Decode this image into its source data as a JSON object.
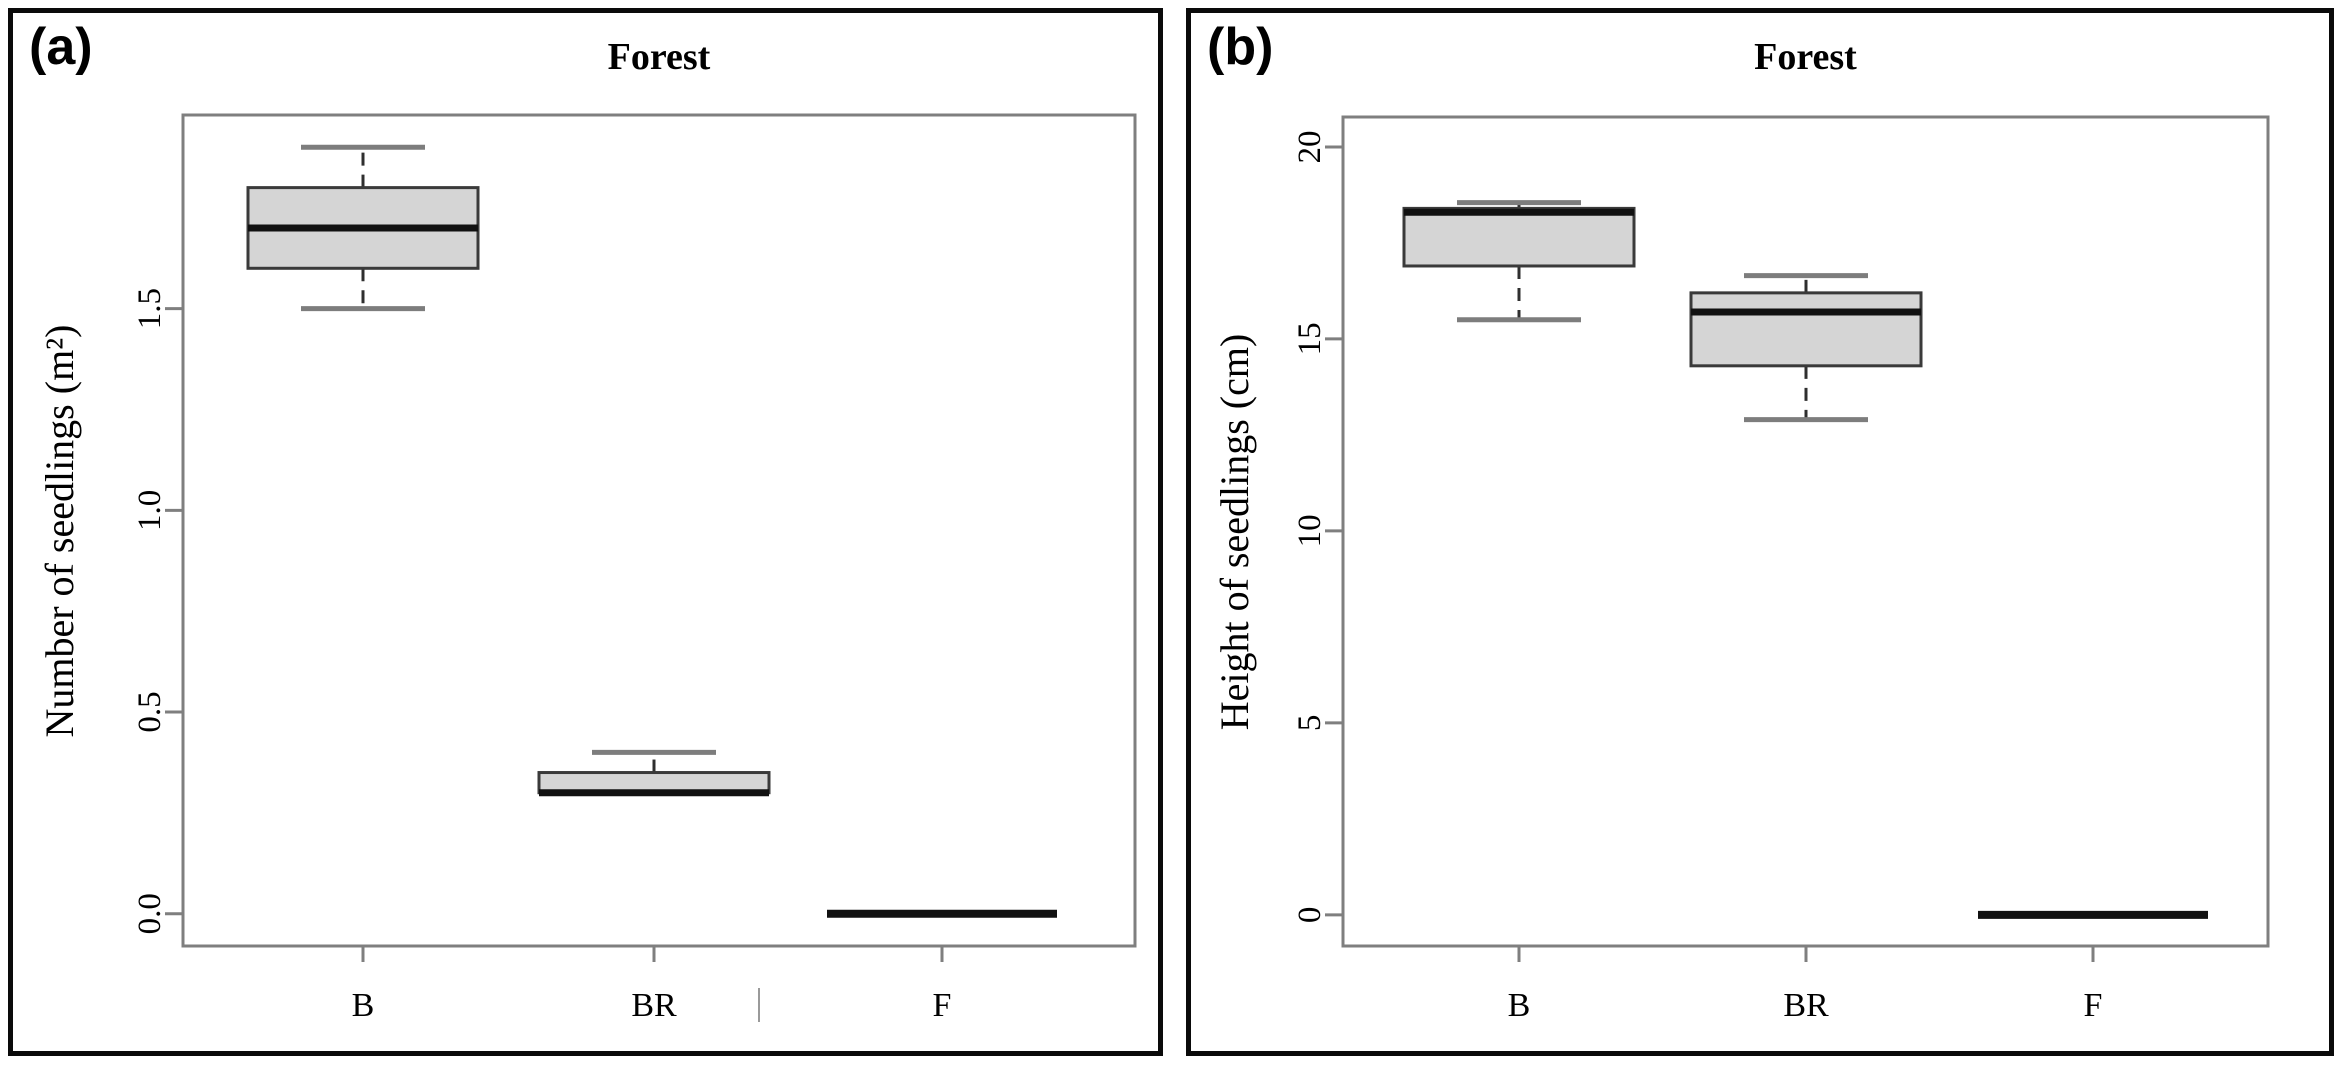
{
  "figure": {
    "colors": {
      "axis": "#7f7f7f",
      "box_fill": "#d5d5d5",
      "box_border": "#3a3a3a",
      "median": "#111111",
      "whisker": "#2f2f2f",
      "whisker_cap": "#7d7d7d",
      "panel_border": "#0a0a0a",
      "text": "#000000"
    }
  },
  "chart_data": [
    {
      "type": "box",
      "panel_label": "(a)",
      "title": "Forest",
      "xlabel": "",
      "ylabel": "Number of seedlings (m²)",
      "categories": [
        "B",
        "BR",
        "F"
      ],
      "yticks": [
        0.0,
        0.5,
        1.0,
        1.5
      ],
      "ytick_labels": [
        "0.0",
        "0.5",
        "1.0",
        "1.5"
      ],
      "ylim": [
        -0.08,
        1.98
      ],
      "grid": false,
      "legend": "none",
      "series": [
        {
          "category": "B",
          "min": 1.5,
          "q1": 1.6,
          "median": 1.7,
          "q3": 1.8,
          "max": 1.9
        },
        {
          "category": "BR",
          "min": 0.3,
          "q1": 0.3,
          "median": 0.3,
          "q3": 0.35,
          "max": 0.4
        },
        {
          "category": "F",
          "min": 0.0,
          "q1": 0.0,
          "median": 0.0,
          "q3": 0.0,
          "max": 0.0
        }
      ]
    },
    {
      "type": "box",
      "panel_label": "(b)",
      "title": "Forest",
      "xlabel": "",
      "ylabel": "Height of seedlings (cm)",
      "categories": [
        "B",
        "BR",
        "F"
      ],
      "yticks": [
        0,
        5,
        10,
        15,
        20
      ],
      "ytick_labels": [
        "0",
        "5",
        "10",
        "15",
        "20"
      ],
      "ylim": [
        -0.81,
        20.78
      ],
      "grid": false,
      "legend": "none",
      "series": [
        {
          "category": "B",
          "min": 15.5,
          "q1": 16.9,
          "median": 18.3,
          "q3": 18.4,
          "max": 18.55
        },
        {
          "category": "BR",
          "min": 12.9,
          "q1": 14.3,
          "median": 15.7,
          "q3": 16.2,
          "max": 16.65
        },
        {
          "category": "F",
          "min": 0.0,
          "q1": 0.0,
          "median": 0.0,
          "q3": 0.0,
          "max": 0.0
        }
      ]
    }
  ]
}
